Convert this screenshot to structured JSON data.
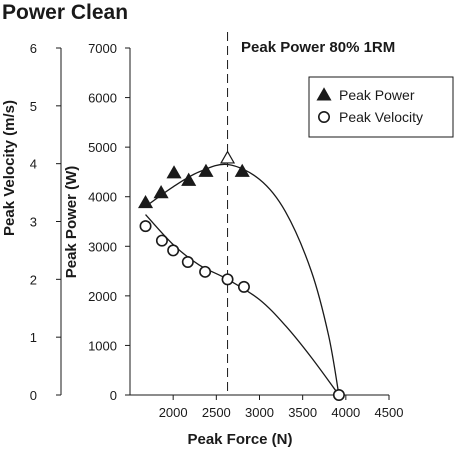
{
  "chart_data": {
    "type": "scatter",
    "title": "Power Clean",
    "xlabel": "Peak Force (N)",
    "ylabel_left": "Peak Velocity (m/s)",
    "ylabel_right": "Peak Power (W)",
    "xlim": [
      1500,
      4500
    ],
    "xticks": [
      2000,
      2500,
      3000,
      3500,
      4000,
      4500
    ],
    "velocity_lim": [
      0,
      6
    ],
    "velocity_ticks": [
      0,
      1,
      2,
      3,
      4,
      5,
      6
    ],
    "power_lim": [
      0,
      7000
    ],
    "power_ticks": [
      0,
      1000,
      2000,
      3000,
      4000,
      5000,
      6000,
      7000
    ],
    "annotation": {
      "text": "Peak Power 80% 1RM",
      "x": 2630
    },
    "legend": {
      "position": "top-right",
      "entries": [
        "Peak Power",
        "Peak Velocity"
      ]
    },
    "series": [
      {
        "name": "Peak Power",
        "marker": "triangle-filled",
        "axis": "power",
        "points": [
          {
            "x": 1680,
            "y": 3880
          },
          {
            "x": 1860,
            "y": 4080
          },
          {
            "x": 2010,
            "y": 4480
          },
          {
            "x": 2180,
            "y": 4330
          },
          {
            "x": 2380,
            "y": 4510
          },
          {
            "x": 2800,
            "y": 4510
          }
        ],
        "highlight": {
          "x": 2630,
          "y": 4780,
          "marker": "triangle-open"
        },
        "curve": [
          {
            "x": 1680,
            "y": 3800
          },
          {
            "x": 2000,
            "y": 4200
          },
          {
            "x": 2300,
            "y": 4500
          },
          {
            "x": 2630,
            "y": 4650
          },
          {
            "x": 3000,
            "y": 4350
          },
          {
            "x": 3300,
            "y": 3700
          },
          {
            "x": 3600,
            "y": 2500
          },
          {
            "x": 3800,
            "y": 1200
          },
          {
            "x": 3920,
            "y": 0
          }
        ]
      },
      {
        "name": "Peak Velocity",
        "marker": "circle-open",
        "axis": "velocity",
        "points": [
          {
            "x": 1680,
            "y": 2.92
          },
          {
            "x": 1870,
            "y": 2.67
          },
          {
            "x": 2000,
            "y": 2.5
          },
          {
            "x": 2170,
            "y": 2.3
          },
          {
            "x": 2370,
            "y": 2.13
          },
          {
            "x": 2630,
            "y": 2.0
          },
          {
            "x": 2820,
            "y": 1.87
          },
          {
            "x": 3920,
            "y": 0
          }
        ],
        "curve": [
          {
            "x": 1680,
            "y": 3.12
          },
          {
            "x": 2000,
            "y": 2.6
          },
          {
            "x": 2300,
            "y": 2.25
          },
          {
            "x": 2630,
            "y": 2.0
          },
          {
            "x": 3000,
            "y": 1.65
          },
          {
            "x": 3300,
            "y": 1.2
          },
          {
            "x": 3600,
            "y": 0.65
          },
          {
            "x": 3920,
            "y": 0
          }
        ]
      }
    ]
  }
}
